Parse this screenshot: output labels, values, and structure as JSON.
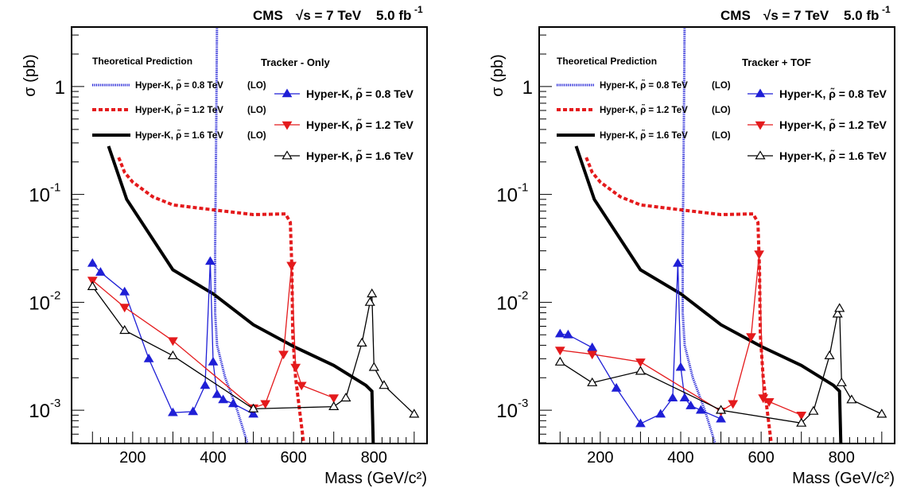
{
  "header": {
    "experiment": "CMS",
    "energy": "√s = 7 TeV",
    "lumi_value": "5.0 fb",
    "lumi_exp": "-1"
  },
  "colors": {
    "rho08": "#1f1fd6",
    "rho12": "#e41a1c",
    "rho16": "#000000"
  },
  "chart_data": [
    {
      "type": "line",
      "panel": "left",
      "xlabel": "Mass (GeV/c²)",
      "ylabel": "σ (pb)",
      "xlim": [
        50,
        930
      ],
      "ylim": [
        0.0005,
        3.5
      ],
      "log_y": true,
      "grid": false,
      "x_ticks": [
        200,
        400,
        600,
        800
      ],
      "y_ticks": [
        {
          "value": 1,
          "label": "1"
        },
        {
          "value": 0.1,
          "label": "10",
          "exp": "-1"
        },
        {
          "value": 0.01,
          "label": "10",
          "exp": "-2"
        },
        {
          "value": 0.001,
          "label": "10",
          "exp": "-3"
        }
      ],
      "legend_theory_title": "Theoretical Prediction",
      "legend_meas_title": "Tracker - Only",
      "theory": [
        {
          "name": "Hyper-K, ρ̃ = 0.8 TeV (LO)",
          "label": "Hyper-K, ρ̃ = 0.8 TeV",
          "tag": "(LO)",
          "style": "dotted",
          "color": "#1f1fd6",
          "points": [
            [
              410,
              5
            ],
            [
              408,
              0.5
            ],
            [
              405,
              0.03
            ],
            [
              405,
              0.008
            ],
            [
              410,
              0.004
            ],
            [
              430,
              0.002
            ],
            [
              460,
              0.001
            ],
            [
              485,
              0.0005
            ]
          ]
        },
        {
          "name": "Hyper-K, ρ̃ = 1.2 TeV (LO)",
          "label": "Hyper-K, ρ̃ = 1.2 TeV",
          "tag": "(LO)",
          "style": "dashed",
          "color": "#e41a1c",
          "points": [
            [
              165,
              0.22
            ],
            [
              180,
              0.16
            ],
            [
              200,
              0.13
            ],
            [
              250,
              0.095
            ],
            [
              300,
              0.08
            ],
            [
              400,
              0.072
            ],
            [
              500,
              0.065
            ],
            [
              580,
              0.066
            ],
            [
              592,
              0.055
            ],
            [
              596,
              0.02
            ],
            [
              598,
              0.005
            ],
            [
              605,
              0.002
            ],
            [
              615,
              0.001
            ],
            [
              625,
              0.0005
            ]
          ]
        },
        {
          "name": "Hyper-K, ρ̃ = 1.6 TeV (LO)",
          "label": "Hyper-K, ρ̃ = 1.6 TeV",
          "tag": "(LO)",
          "style": "solid",
          "color": "#000000",
          "points": [
            [
              140,
              0.28
            ],
            [
              185,
              0.09
            ],
            [
              300,
              0.02
            ],
            [
              400,
              0.012
            ],
            [
              500,
              0.0062
            ],
            [
              600,
              0.0039
            ],
            [
              700,
              0.0026
            ],
            [
              780,
              0.0017
            ],
            [
              795,
              0.0015
            ],
            [
              798,
              0.0005
            ]
          ]
        }
      ],
      "series": [
        {
          "name": "Hyper-K, ρ̃ = 0.8 TeV",
          "marker": "triangle-up-filled",
          "color": "#1f1fd6",
          "x": [
            100,
            120,
            180,
            240,
            300,
            350,
            380,
            393,
            400,
            410,
            425,
            450,
            500
          ],
          "y": [
            0.023,
            0.019,
            0.0125,
            0.003,
            0.00095,
            0.00097,
            0.0017,
            0.024,
            0.0028,
            0.0014,
            0.00125,
            0.00115,
            0.00092
          ]
        },
        {
          "name": "Hyper-K, ρ̃ = 1.2 TeV",
          "marker": "triangle-down-filled",
          "color": "#e41a1c",
          "x": [
            100,
            180,
            300,
            500,
            530,
            575,
            595,
            605,
            620,
            700
          ],
          "y": [
            0.016,
            0.009,
            0.0044,
            0.00105,
            0.00115,
            0.0033,
            0.022,
            0.0025,
            0.0017,
            0.0013
          ]
        },
        {
          "name": "Hyper-K, ρ̃ = 1.6 TeV",
          "marker": "triangle-up-open",
          "color": "#000000",
          "x": [
            100,
            180,
            300,
            500,
            700,
            730,
            770,
            790,
            795,
            800,
            825,
            900
          ],
          "y": [
            0.014,
            0.0055,
            0.0032,
            0.00103,
            0.00108,
            0.0013,
            0.0042,
            0.01,
            0.012,
            0.0025,
            0.0017,
            0.00092
          ]
        }
      ]
    },
    {
      "type": "line",
      "panel": "right",
      "xlabel": "Mass (GeV/c²)",
      "ylabel": "σ (pb)",
      "xlim": [
        50,
        930
      ],
      "ylim": [
        0.0005,
        3.5
      ],
      "log_y": true,
      "grid": false,
      "x_ticks": [
        200,
        400,
        600,
        800
      ],
      "y_ticks": [
        {
          "value": 1,
          "label": "1"
        },
        {
          "value": 0.1,
          "label": "10",
          "exp": "-1"
        },
        {
          "value": 0.01,
          "label": "10",
          "exp": "-2"
        },
        {
          "value": 0.001,
          "label": "10",
          "exp": "-3"
        }
      ],
      "legend_theory_title": "Theoretical Prediction",
      "legend_meas_title": "Tracker + TOF",
      "theory": [
        {
          "name": "Hyper-K, ρ̃ = 0.8 TeV (LO)",
          "label": "Hyper-K, ρ̃ = 0.8 TeV",
          "tag": "(LO)",
          "style": "dotted",
          "color": "#1f1fd6",
          "points": [
            [
              410,
              5
            ],
            [
              408,
              0.5
            ],
            [
              405,
              0.03
            ],
            [
              405,
              0.008
            ],
            [
              410,
              0.004
            ],
            [
              430,
              0.002
            ],
            [
              460,
              0.001
            ],
            [
              485,
              0.0005
            ]
          ]
        },
        {
          "name": "Hyper-K, ρ̃ = 1.2 TeV (LO)",
          "label": "Hyper-K, ρ̃ = 1.2 TeV",
          "tag": "(LO)",
          "style": "dashed",
          "color": "#e41a1c",
          "points": [
            [
              165,
              0.22
            ],
            [
              180,
              0.16
            ],
            [
              200,
              0.13
            ],
            [
              250,
              0.095
            ],
            [
              300,
              0.08
            ],
            [
              400,
              0.072
            ],
            [
              500,
              0.065
            ],
            [
              580,
              0.066
            ],
            [
              592,
              0.055
            ],
            [
              596,
              0.02
            ],
            [
              598,
              0.005
            ],
            [
              605,
              0.002
            ],
            [
              615,
              0.001
            ],
            [
              625,
              0.0005
            ]
          ]
        },
        {
          "name": "Hyper-K, ρ̃ = 1.6 TeV (LO)",
          "label": "Hyper-K, ρ̃ = 1.6 TeV",
          "tag": "(LO)",
          "style": "solid",
          "color": "#000000",
          "points": [
            [
              140,
              0.28
            ],
            [
              185,
              0.09
            ],
            [
              300,
              0.02
            ],
            [
              400,
              0.012
            ],
            [
              500,
              0.0062
            ],
            [
              600,
              0.0039
            ],
            [
              700,
              0.0026
            ],
            [
              780,
              0.0017
            ],
            [
              795,
              0.0015
            ],
            [
              798,
              0.0005
            ]
          ]
        }
      ],
      "series": [
        {
          "name": "Hyper-K, ρ̃ = 0.8 TeV",
          "marker": "triangle-up-filled",
          "color": "#1f1fd6",
          "x": [
            100,
            120,
            180,
            240,
            300,
            350,
            380,
            393,
            400,
            410,
            425,
            450,
            500
          ],
          "y": [
            0.0051,
            0.005,
            0.0038,
            0.0016,
            0.00075,
            0.00092,
            0.0013,
            0.023,
            0.0025,
            0.0013,
            0.0011,
            0.001,
            0.00083
          ]
        },
        {
          "name": "Hyper-K, ρ̃ = 1.2 TeV",
          "marker": "triangle-down-filled",
          "color": "#e41a1c",
          "x": [
            100,
            180,
            300,
            500,
            530,
            575,
            595,
            605,
            620,
            700
          ],
          "y": [
            0.0036,
            0.0033,
            0.0028,
            0.00098,
            0.00115,
            0.0048,
            0.028,
            0.0013,
            0.0012,
            0.0009
          ]
        },
        {
          "name": "Hyper-K, ρ̃ = 1.6 TeV",
          "marker": "triangle-up-open",
          "color": "#000000",
          "x": [
            100,
            180,
            300,
            500,
            700,
            730,
            770,
            790,
            795,
            800,
            825,
            900
          ],
          "y": [
            0.0028,
            0.0018,
            0.0023,
            0.001,
            0.00076,
            0.00098,
            0.0032,
            0.0078,
            0.0088,
            0.0018,
            0.00125,
            0.00092
          ]
        }
      ]
    }
  ]
}
